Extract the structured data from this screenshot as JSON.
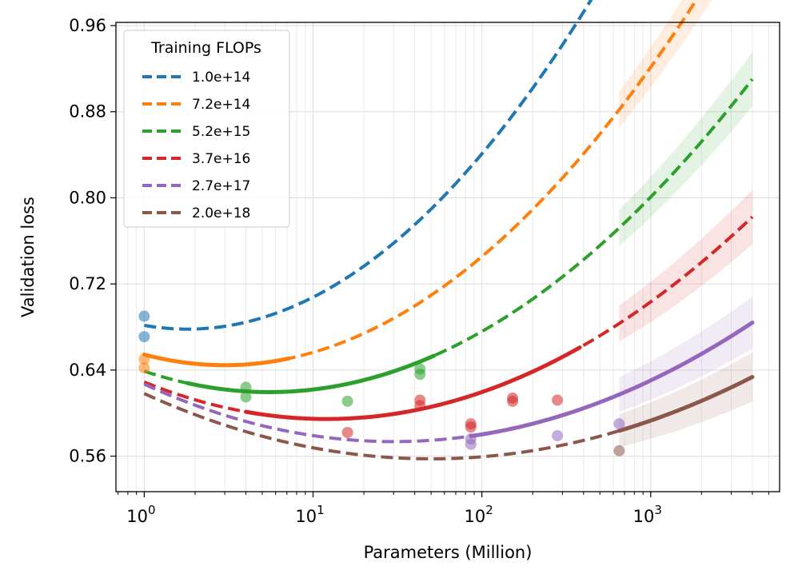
{
  "chart_data": {
    "type": "line",
    "xscale": "log",
    "xlabel": "Parameters (Million)",
    "ylabel": "Validation loss",
    "xlim": [
      0.68,
      5800
    ],
    "ylim": [
      0.527,
      0.963
    ],
    "grid": true,
    "legend": {
      "title": "Training FLOPs",
      "position": "top-left"
    },
    "yticks": [
      {
        "value": 0.56,
        "label": "0.56"
      },
      {
        "value": 0.64,
        "label": "0.64"
      },
      {
        "value": 0.72,
        "label": "0.72"
      },
      {
        "value": 0.8,
        "label": "0.80"
      },
      {
        "value": 0.88,
        "label": "0.88"
      },
      {
        "value": 0.96,
        "label": "0.96"
      }
    ],
    "xticks": [
      {
        "value": 1,
        "base": "10",
        "exp": "0"
      },
      {
        "value": 10,
        "base": "10",
        "exp": "1"
      },
      {
        "value": 100,
        "base": "10",
        "exp": "2"
      },
      {
        "value": 1000,
        "base": "10",
        "exp": "3"
      }
    ],
    "curve_x_range": [
      1,
      4000
    ],
    "band_start_x": 650,
    "series": [
      {
        "name": "1.0e+14",
        "color": "#1f77b4",
        "loss_min": 0.678,
        "p_opt": 1.8,
        "curvature": 0.0535,
        "solid_range": null,
        "band_half_width": 0.02,
        "points": [
          [
            1,
            0.69
          ],
          [
            1,
            0.671
          ]
        ]
      },
      {
        "name": "7.2e+14",
        "color": "#ff7f0e",
        "loss_min": 0.6445,
        "p_opt": 3.0,
        "curvature": 0.0435,
        "solid_range": [
          1,
          7.2
        ],
        "band_half_width": 0.021,
        "points": [
          [
            1,
            0.65
          ],
          [
            1,
            0.642
          ]
        ]
      },
      {
        "name": "5.2e+15",
        "color": "#2ca02c",
        "loss_min": 0.6195,
        "p_opt": 5.5,
        "curvature": 0.0355,
        "solid_range": [
          1.8,
          52
        ],
        "band_half_width": 0.021,
        "points": [
          [
            4,
            0.624
          ],
          [
            4,
            0.615
          ],
          [
            16,
            0.611
          ],
          [
            43,
            0.641
          ],
          [
            43,
            0.636
          ]
        ]
      },
      {
        "name": "3.7e+16",
        "color": "#d62728",
        "loss_min": 0.5945,
        "p_opt": 12,
        "curvature": 0.0295,
        "solid_range": [
          4,
          380
        ],
        "band_half_width": 0.021,
        "points": [
          [
            16,
            0.582
          ],
          [
            43,
            0.612
          ],
          [
            43,
            0.607
          ],
          [
            86,
            0.59
          ],
          [
            86,
            0.587
          ],
          [
            152,
            0.614
          ],
          [
            152,
            0.611
          ],
          [
            280,
            0.612
          ]
        ]
      },
      {
        "name": "2.7e+17",
        "color": "#9467bd",
        "loss_min": 0.5735,
        "p_opt": 30,
        "curvature": 0.0245,
        "solid_range": [
          86,
          4000
        ],
        "band_half_width": 0.02,
        "points": [
          [
            86,
            0.576
          ],
          [
            86,
            0.571
          ],
          [
            280,
            0.579
          ],
          [
            650,
            0.59
          ]
        ]
      },
      {
        "name": "2.0e+18",
        "color": "#8c564b",
        "loss_min": 0.5575,
        "p_opt": 50,
        "curvature": 0.021,
        "solid_range": [
          650,
          4000
        ],
        "band_half_width": 0.019,
        "points": [
          [
            650,
            0.565
          ]
        ]
      }
    ]
  }
}
